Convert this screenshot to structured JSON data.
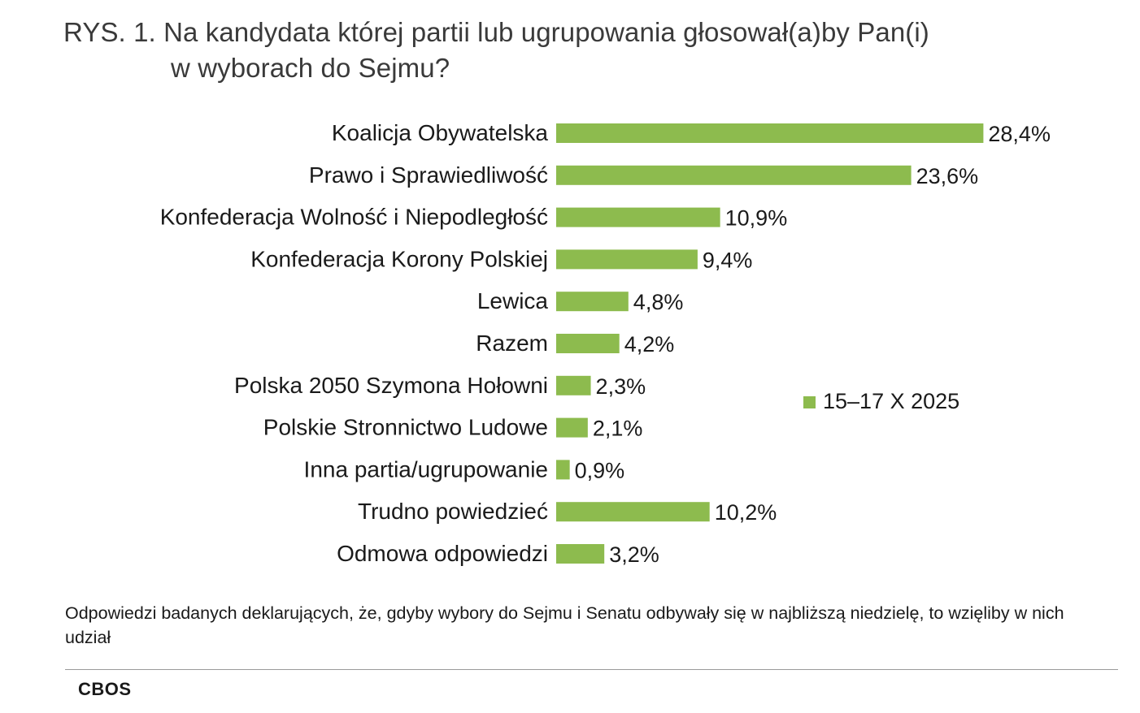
{
  "title": {
    "line1": "RYS. 1. Na kandydata której partii lub ugrupowania głosował(a)by Pan(i)",
    "line2": "w wyborach do Sejmu?"
  },
  "chart_data": {
    "type": "bar",
    "orientation": "horizontal",
    "categories": [
      "Koalicja Obywatelska",
      "Prawo i Sprawiedliwość",
      "Konfederacja Wolność i Niepodległość",
      "Konfederacja Korony Polskiej",
      "Lewica",
      "Razem",
      "Polska 2050 Szymona Hołowni",
      "Polskie Stronnictwo Ludowe",
      "Inna partia/ugrupowanie",
      "Trudno powiedzieć",
      "Odmowa odpowiedzi"
    ],
    "series": [
      {
        "name": "15–17 X 2025",
        "values": [
          28.4,
          23.6,
          10.9,
          9.4,
          4.8,
          4.2,
          2.3,
          2.1,
          0.9,
          10.2,
          3.2
        ],
        "labels": [
          "28,4%",
          "23,6%",
          "10,9%",
          "9,4%",
          "4,8%",
          "4,2%",
          "2,3%",
          "2,1%",
          "0,9%",
          "10,2%",
          "3,2%"
        ],
        "color": "#8DBB4E"
      }
    ],
    "legend_position": "right",
    "grid": false
  },
  "footnote": "Odpowiedzi badanych deklarujących, że, gdyby wybory do Sejmu i Senatu odbywały się w najbliższą niedzielę, to wzięliby w nich udział",
  "source": "CBOS"
}
